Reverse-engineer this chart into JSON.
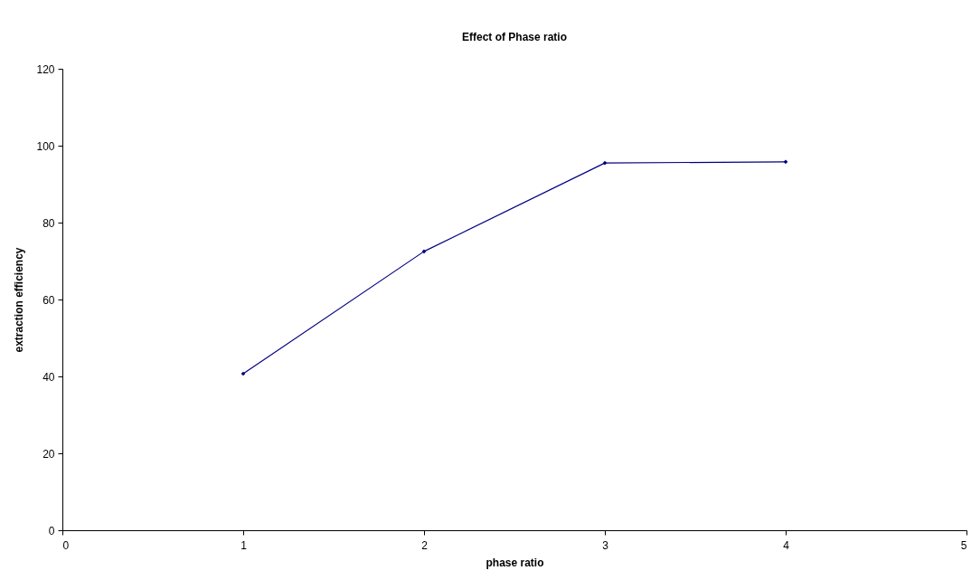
{
  "chart_data": {
    "type": "line",
    "title": "Effect of Phase ratio",
    "xlabel": "phase ratio",
    "ylabel": "extraction efficiency",
    "x": [
      1,
      2,
      3,
      4
    ],
    "series": [
      {
        "color": "#000080",
        "values": [
          40.7,
          72.5,
          95.5,
          95.8
        ]
      }
    ],
    "xlim": [
      0,
      5
    ],
    "xticks": [
      0,
      1,
      2,
      3,
      4,
      5
    ],
    "ylim": [
      0,
      120
    ],
    "yticks": [
      0,
      20,
      40,
      60,
      80,
      100,
      120
    ],
    "grid": false,
    "marker": "diamond",
    "line_style": "solid"
  }
}
